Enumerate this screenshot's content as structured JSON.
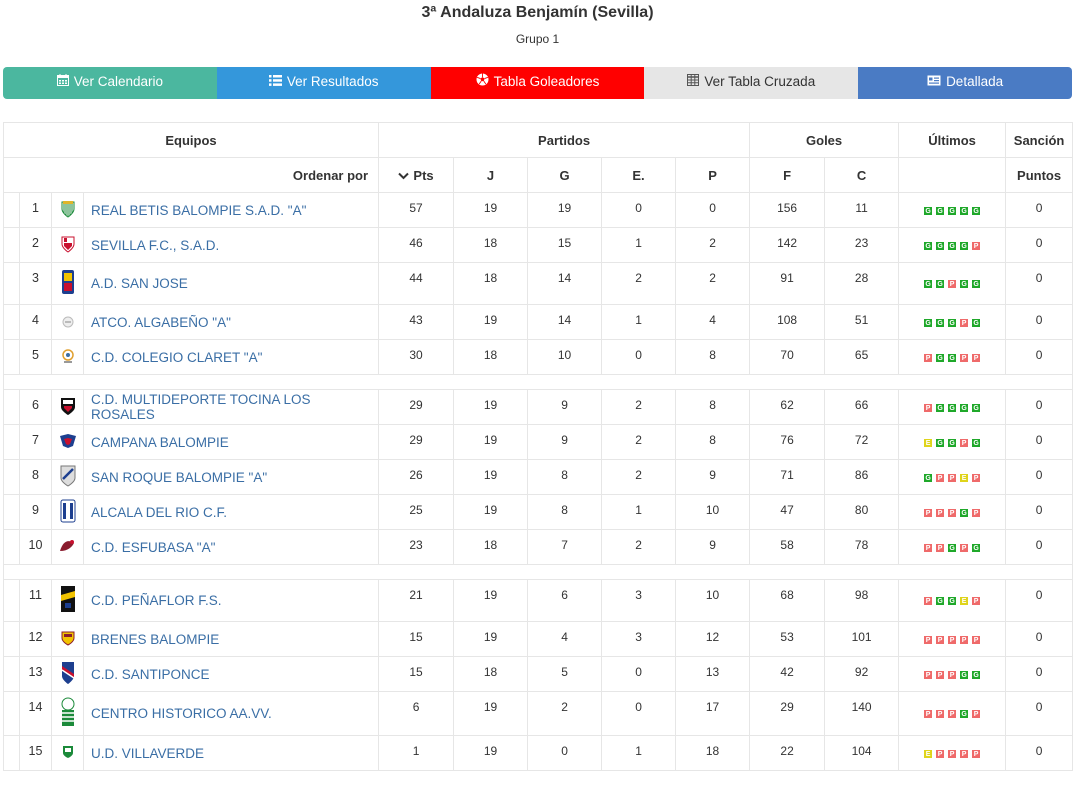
{
  "header": {
    "title": "3ª Andaluza Benjamín (Sevilla)",
    "subtitle": "Grupo 1"
  },
  "tabs": [
    {
      "label": "Ver Calendario",
      "icon": "calendar-icon"
    },
    {
      "label": "Ver Resultados",
      "icon": "list-icon"
    },
    {
      "label": "Tabla Goleadores",
      "icon": "soccer-ball-icon"
    },
    {
      "label": "Ver Tabla Cruzada",
      "icon": "table-grid-icon"
    },
    {
      "label": "Detallada",
      "icon": "id-card-icon"
    }
  ],
  "table": {
    "group_headers": {
      "equipos": "Equipos",
      "partidos": "Partidos",
      "goles": "Goles",
      "ultimos": "Últimos",
      "sancion": "Sanción"
    },
    "sort": {
      "label": "Ordenar por",
      "pts": "Pts"
    },
    "cols": {
      "j": "J",
      "g": "G",
      "e": "E.",
      "p": "P",
      "f": "F",
      "c": "C",
      "puntos": "Puntos"
    },
    "rows": [
      {
        "pos": "1",
        "team": "REAL BETIS BALOMPIE S.A.D. \"A\"",
        "pts": "57",
        "j": "19",
        "g": "19",
        "e": "0",
        "p": "0",
        "f": "156",
        "c": "11",
        "last": [
          "G",
          "G",
          "G",
          "G",
          "G"
        ],
        "sancion": "0"
      },
      {
        "pos": "2",
        "team": "SEVILLA F.C., S.A.D.",
        "pts": "46",
        "j": "18",
        "g": "15",
        "e": "1",
        "p": "2",
        "f": "142",
        "c": "23",
        "last": [
          "G",
          "G",
          "G",
          "G",
          "P"
        ],
        "sancion": "0"
      },
      {
        "pos": "3",
        "team": "A.D. SAN JOSE",
        "pts": "44",
        "j": "18",
        "g": "14",
        "e": "2",
        "p": "2",
        "f": "91",
        "c": "28",
        "last": [
          "G",
          "G",
          "P",
          "G",
          "G"
        ],
        "sancion": "0"
      },
      {
        "pos": "4",
        "team": "ATCO. ALGABEÑO \"A\"",
        "pts": "43",
        "j": "19",
        "g": "14",
        "e": "1",
        "p": "4",
        "f": "108",
        "c": "51",
        "last": [
          "G",
          "G",
          "G",
          "P",
          "G"
        ],
        "sancion": "0"
      },
      {
        "pos": "5",
        "team": "C.D. COLEGIO CLARET \"A\"",
        "pts": "30",
        "j": "18",
        "g": "10",
        "e": "0",
        "p": "8",
        "f": "70",
        "c": "65",
        "last": [
          "P",
          "G",
          "G",
          "P",
          "P"
        ],
        "sancion": "0"
      },
      {
        "pos": "6",
        "team": "C.D. MULTIDEPORTE TOCINA LOS ROSALES",
        "pts": "29",
        "j": "19",
        "g": "9",
        "e": "2",
        "p": "8",
        "f": "62",
        "c": "66",
        "last": [
          "P",
          "G",
          "G",
          "G",
          "G"
        ],
        "sancion": "0"
      },
      {
        "pos": "7",
        "team": "CAMPANA BALOMPIE",
        "pts": "29",
        "j": "19",
        "g": "9",
        "e": "2",
        "p": "8",
        "f": "76",
        "c": "72",
        "last": [
          "E",
          "G",
          "G",
          "P",
          "G"
        ],
        "sancion": "0"
      },
      {
        "pos": "8",
        "team": "SAN ROQUE BALOMPIE \"A\"",
        "pts": "26",
        "j": "19",
        "g": "8",
        "e": "2",
        "p": "9",
        "f": "71",
        "c": "86",
        "last": [
          "G",
          "P",
          "P",
          "E",
          "P"
        ],
        "sancion": "0"
      },
      {
        "pos": "9",
        "team": "ALCALA DEL RIO C.F.",
        "pts": "25",
        "j": "19",
        "g": "8",
        "e": "1",
        "p": "10",
        "f": "47",
        "c": "80",
        "last": [
          "P",
          "P",
          "P",
          "G",
          "P"
        ],
        "sancion": "0"
      },
      {
        "pos": "10",
        "team": "C.D. ESFUBASA \"A\"",
        "pts": "23",
        "j": "18",
        "g": "7",
        "e": "2",
        "p": "9",
        "f": "58",
        "c": "78",
        "last": [
          "P",
          "P",
          "G",
          "P",
          "G"
        ],
        "sancion": "0"
      },
      {
        "pos": "11",
        "team": "C.D. PEÑAFLOR F.S.",
        "pts": "21",
        "j": "19",
        "g": "6",
        "e": "3",
        "p": "10",
        "f": "68",
        "c": "98",
        "last": [
          "P",
          "G",
          "G",
          "E",
          "P"
        ],
        "sancion": "0"
      },
      {
        "pos": "12",
        "team": "BRENES BALOMPIE",
        "pts": "15",
        "j": "19",
        "g": "4",
        "e": "3",
        "p": "12",
        "f": "53",
        "c": "101",
        "last": [
          "P",
          "P",
          "P",
          "P",
          "P"
        ],
        "sancion": "0"
      },
      {
        "pos": "13",
        "team": "C.D. SANTIPONCE",
        "pts": "15",
        "j": "18",
        "g": "5",
        "e": "0",
        "p": "13",
        "f": "42",
        "c": "92",
        "last": [
          "P",
          "P",
          "P",
          "G",
          "G"
        ],
        "sancion": "0"
      },
      {
        "pos": "14",
        "team": "CENTRO HISTORICO AA.VV.",
        "pts": "6",
        "j": "19",
        "g": "2",
        "e": "0",
        "p": "17",
        "f": "29",
        "c": "140",
        "last": [
          "P",
          "P",
          "P",
          "G",
          "P"
        ],
        "sancion": "0"
      },
      {
        "pos": "15",
        "team": "U.D. VILLAVERDE",
        "pts": "1",
        "j": "19",
        "g": "0",
        "e": "1",
        "p": "18",
        "f": "22",
        "c": "104",
        "last": [
          "E",
          "P",
          "P",
          "P",
          "P"
        ],
        "sancion": "0"
      }
    ]
  }
}
